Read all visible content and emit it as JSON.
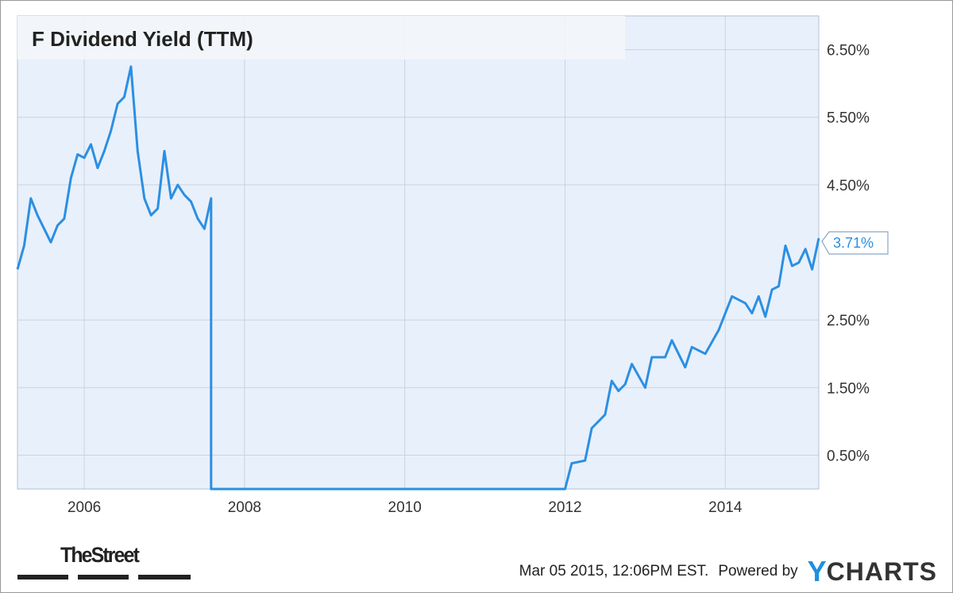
{
  "chart_data": {
    "type": "line",
    "title": "F Dividend Yield (TTM)",
    "xlabel": "",
    "ylabel": "",
    "x_ticks": [
      "2006",
      "2008",
      "2010",
      "2012",
      "2014"
    ],
    "y_ticks": [
      "0.50%",
      "1.50%",
      "2.50%",
      "4.50%",
      "5.50%",
      "6.50%"
    ],
    "ylim": [
      0,
      7.0
    ],
    "xlim": [
      "2005-03",
      "2015-03"
    ],
    "grid": true,
    "last_value_label": "3.71%",
    "series": [
      {
        "color": "#2b8fe3",
        "points": [
          [
            "2005-03",
            3.25
          ],
          [
            "2005-04",
            3.6
          ],
          [
            "2005-05",
            4.3
          ],
          [
            "2005-06",
            4.05
          ],
          [
            "2005-07",
            3.85
          ],
          [
            "2005-08",
            3.65
          ],
          [
            "2005-09",
            3.9
          ],
          [
            "2005-10",
            4.0
          ],
          [
            "2005-11",
            4.6
          ],
          [
            "2005-12",
            4.95
          ],
          [
            "2006-01",
            4.9
          ],
          [
            "2006-02",
            5.1
          ],
          [
            "2006-03",
            4.75
          ],
          [
            "2006-04",
            5.0
          ],
          [
            "2006-05",
            5.3
          ],
          [
            "2006-06",
            5.7
          ],
          [
            "2006-07",
            5.8
          ],
          [
            "2006-08",
            6.25
          ],
          [
            "2006-09",
            5.0
          ],
          [
            "2006-10",
            4.3
          ],
          [
            "2006-11",
            4.05
          ],
          [
            "2006-12",
            4.15
          ],
          [
            "2007-01",
            5.0
          ],
          [
            "2007-02",
            4.3
          ],
          [
            "2007-03",
            4.5
          ],
          [
            "2007-04",
            4.35
          ],
          [
            "2007-05",
            4.25
          ],
          [
            "2007-06",
            4.0
          ],
          [
            "2007-07",
            3.85
          ],
          [
            "2007-08",
            4.3
          ],
          [
            "2007-08",
            0.0
          ],
          [
            "2009-01",
            0.0
          ],
          [
            "2010-06",
            0.0
          ],
          [
            "2012-01",
            0.0
          ],
          [
            "2012-02",
            0.38
          ],
          [
            "2012-04",
            0.42
          ],
          [
            "2012-05",
            0.9
          ],
          [
            "2012-07",
            1.1
          ],
          [
            "2012-08",
            1.6
          ],
          [
            "2012-09",
            1.45
          ],
          [
            "2012-10",
            1.55
          ],
          [
            "2012-11",
            1.85
          ],
          [
            "2013-01",
            1.5
          ],
          [
            "2013-02",
            1.95
          ],
          [
            "2013-04",
            1.95
          ],
          [
            "2013-05",
            2.2
          ],
          [
            "2013-07",
            1.8
          ],
          [
            "2013-08",
            2.1
          ],
          [
            "2013-10",
            2.0
          ],
          [
            "2013-12",
            2.35
          ],
          [
            "2014-01",
            2.6
          ],
          [
            "2014-02",
            2.85
          ],
          [
            "2014-04",
            2.75
          ],
          [
            "2014-05",
            2.6
          ],
          [
            "2014-06",
            2.85
          ],
          [
            "2014-07",
            2.55
          ],
          [
            "2014-08",
            2.95
          ],
          [
            "2014-09",
            3.0
          ],
          [
            "2014-10",
            3.6
          ],
          [
            "2014-11",
            3.3
          ],
          [
            "2014-12",
            3.35
          ],
          [
            "2015-01",
            3.55
          ],
          [
            "2015-02",
            3.25
          ],
          [
            "2015-03",
            3.71
          ]
        ]
      }
    ]
  },
  "footer": {
    "brand_left": "TheStreet",
    "timestamp": "Mar 05 2015, 12:06PM EST.",
    "powered_by": "Powered by",
    "ycharts_y": "Y",
    "ycharts_rest": "CHARTS"
  },
  "colors": {
    "plot_background": "#e8f0fb",
    "line": "#2b8fe3",
    "grid": "#c9d3de"
  }
}
